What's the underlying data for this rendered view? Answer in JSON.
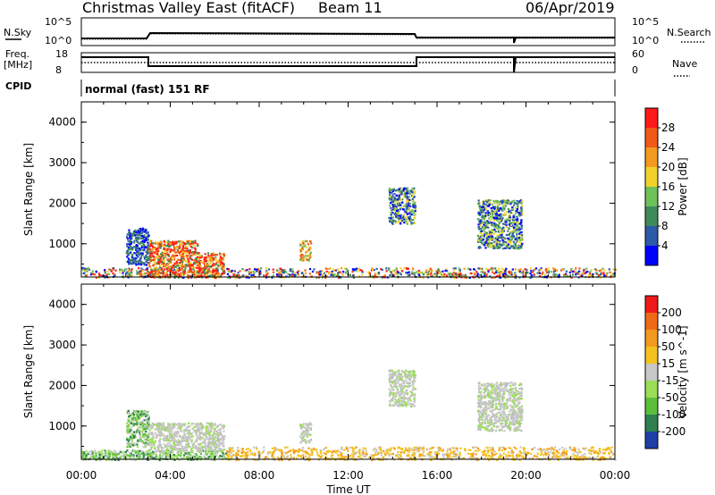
{
  "header": {
    "title": "Christmas Valley East (fitACF)",
    "beam": "Beam 11",
    "date": "06/Apr/2019"
  },
  "top_panels": {
    "nsky_label": "N.Sky",
    "nsky_ticks": [
      "10^5",
      "10^0"
    ],
    "nsearch_label": "N.Search",
    "nsearch_ticks": [
      "10^5",
      "10^0"
    ],
    "freq_label_1": "Freq.",
    "freq_label_2": "[MHz]",
    "freq_ticks": [
      "18",
      "8"
    ],
    "nave_label": "Nave",
    "nave_ticks": [
      "60",
      "0"
    ],
    "cpid_label": "CPID",
    "cpid_text": "normal (fast) 151 RF"
  },
  "chart_data": [
    {
      "type": "heatmap",
      "name": "power",
      "ylabel": "Slant Range [km]",
      "xlabel": "",
      "y_ticks": [
        "4000",
        "3000",
        "2000",
        "1000"
      ],
      "ylim": [
        180,
        4500
      ],
      "xlim_hours": [
        0,
        24
      ],
      "colorbar": {
        "label": "Power [dB]",
        "ticks": [
          "28",
          "24",
          "20",
          "16",
          "12",
          "8",
          "4"
        ],
        "range": [
          0,
          32
        ],
        "colors": [
          "#0000ff",
          "#2d5aa8",
          "#3f8a5a",
          "#6fc15a",
          "#f2d22a",
          "#f39a1e",
          "#ef5a16",
          "#ff1a1a"
        ]
      },
      "regions": [
        {
          "t0": 0.0,
          "t1": 24.0,
          "r0": 180,
          "r1": 420,
          "level": "low-mid"
        },
        {
          "t0": 2.0,
          "t1": 3.0,
          "r0": 500,
          "r1": 1400,
          "level": "low"
        },
        {
          "t0": 3.0,
          "t1": 5.2,
          "r0": 180,
          "r1": 1100,
          "level": "high"
        },
        {
          "t0": 5.2,
          "t1": 6.4,
          "r0": 180,
          "r1": 800,
          "level": "high"
        },
        {
          "t0": 9.8,
          "t1": 10.3,
          "r0": 600,
          "r1": 1100,
          "level": "mid"
        },
        {
          "t0": 13.8,
          "t1": 15.0,
          "r0": 1500,
          "r1": 2400,
          "level": "mid-low"
        },
        {
          "t0": 17.8,
          "t1": 19.8,
          "r0": 900,
          "r1": 2100,
          "level": "mid-low"
        }
      ]
    },
    {
      "type": "heatmap",
      "name": "velocity",
      "ylabel": "Slant Range [km]",
      "xlabel": "Time UT",
      "x_ticks": [
        "00:00",
        "04:00",
        "08:00",
        "12:00",
        "16:00",
        "20:00",
        "00:00"
      ],
      "y_ticks": [
        "4000",
        "3000",
        "2000",
        "1000"
      ],
      "ylim": [
        180,
        4500
      ],
      "xlim_hours": [
        0,
        24
      ],
      "colorbar": {
        "label": "Velocity [m s^-1]",
        "ticks": [
          "200",
          "100",
          "50",
          "15",
          "-15",
          "-50",
          "-100",
          "-200"
        ],
        "colors": [
          "#1f3fa8",
          "#2f7f50",
          "#5cbf3c",
          "#9adf55",
          "#c8c8c8",
          "#f3c21e",
          "#f39a1e",
          "#ef6a16",
          "#ef1a1a"
        ]
      },
      "regions": [
        {
          "t0": 0.0,
          "t1": 6.5,
          "r0": 180,
          "r1": 420,
          "level": "green"
        },
        {
          "t0": 6.5,
          "t1": 24.0,
          "r0": 180,
          "r1": 500,
          "level": "orange"
        },
        {
          "t0": 2.0,
          "t1": 3.0,
          "r0": 500,
          "r1": 1400,
          "level": "green"
        },
        {
          "t0": 3.0,
          "t1": 6.4,
          "r0": 400,
          "r1": 1100,
          "level": "grey"
        },
        {
          "t0": 9.8,
          "t1": 10.3,
          "r0": 600,
          "r1": 1100,
          "level": "grey"
        },
        {
          "t0": 13.8,
          "t1": 15.0,
          "r0": 1500,
          "r1": 2400,
          "level": "grey"
        },
        {
          "t0": 17.8,
          "t1": 19.8,
          "r0": 900,
          "r1": 2100,
          "level": "grey"
        }
      ]
    }
  ]
}
